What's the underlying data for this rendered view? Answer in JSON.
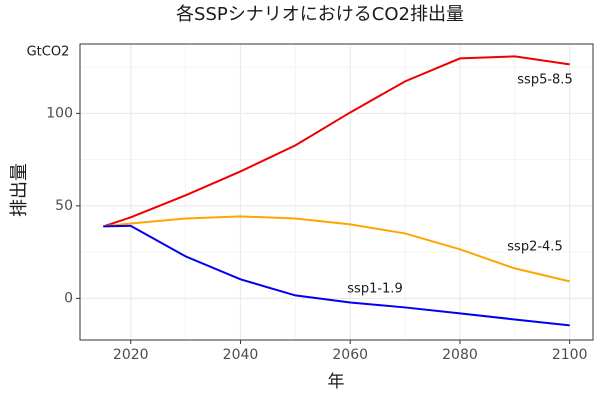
{
  "chart_data": {
    "type": "line",
    "title": "各SSPシナリオにおけるCO2排出量",
    "x_label": "年",
    "y_label": "排出量",
    "annotations": [
      "GtCO2",
      "ssp5-8.5",
      "ssp2-4.5",
      "ssp1-1.9"
    ],
    "x": [
      2015,
      2020,
      2030,
      2040,
      2050,
      2060,
      2070,
      2080,
      2090,
      2100
    ],
    "series": [
      {
        "name": "ssp5-8.5",
        "color": "#ee0000",
        "values": [
          38.9,
          43.8,
          55.7,
          68.6,
          82.7,
          100.5,
          117.3,
          129.7,
          130.8,
          126.5
        ]
      },
      {
        "name": "ssp2-4.5",
        "color": "#ffa500",
        "values": [
          38.9,
          40.5,
          43.2,
          44.3,
          43.2,
          40.0,
          35.1,
          26.5,
          16.2,
          9.2
        ]
      },
      {
        "name": "ssp1-1.9",
        "color": "#0000ee",
        "values": [
          38.9,
          39.2,
          22.7,
          10.3,
          1.6,
          -2.2,
          -4.9,
          -8.1,
          -11.4,
          -14.6
        ]
      }
    ],
    "xlim": [
      2010.75,
      2104.25
    ],
    "ylim": [
      -22.5,
      137.5
    ],
    "xticks": [
      2020,
      2040,
      2060,
      2080,
      2100
    ],
    "yticks": [
      0,
      50,
      100
    ],
    "xminorticks": [
      2030,
      2050,
      2070,
      2090
    ],
    "yminorticks": [
      25,
      75,
      125
    ],
    "grid": true
  }
}
